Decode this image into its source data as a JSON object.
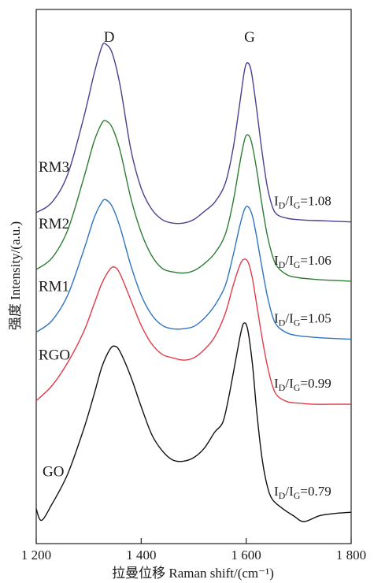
{
  "chart_data": {
    "type": "line",
    "title": "",
    "xlabel": "拉曼位移 Raman shift/(cm⁻¹)",
    "ylabel": "强度 Intensity/(a.u.)",
    "xlim": [
      1200,
      1800
    ],
    "x_ticks": [
      1200,
      1400,
      1600,
      1800
    ],
    "x_tick_labels": [
      "1 200",
      "1 400",
      "1 600",
      "1 800"
    ],
    "y_ticks": false,
    "grid": false,
    "legend": "none",
    "peak_labels": [
      {
        "text": "D",
        "x": 1330
      },
      {
        "text": "G",
        "x": 1605
      }
    ],
    "series": [
      {
        "name": "RM3",
        "color": "#4b3f8f",
        "ratio_text": "I_D/I_G=1.08",
        "ratio_sub_1": "D",
        "ratio_sub_2": "G",
        "ratio_value": "=1.08",
        "points": [
          [
            1200,
            8.75
          ],
          [
            1230,
            9.2
          ],
          [
            1260,
            10.4
          ],
          [
            1290,
            12.8
          ],
          [
            1310,
            14.7
          ],
          [
            1325,
            15.9
          ],
          [
            1333,
            16.0
          ],
          [
            1345,
            15.6
          ],
          [
            1360,
            14.2
          ],
          [
            1380,
            11.5
          ],
          [
            1400,
            9.8
          ],
          [
            1420,
            8.9
          ],
          [
            1440,
            8.45
          ],
          [
            1460,
            8.3
          ],
          [
            1480,
            8.3
          ],
          [
            1500,
            8.45
          ],
          [
            1520,
            8.8
          ],
          [
            1540,
            9.2
          ],
          [
            1560,
            10.0
          ],
          [
            1575,
            11.5
          ],
          [
            1588,
            13.5
          ],
          [
            1597,
            14.9
          ],
          [
            1603,
            15.2
          ],
          [
            1610,
            14.8
          ],
          [
            1620,
            13.2
          ],
          [
            1630,
            11.4
          ],
          [
            1640,
            9.9
          ],
          [
            1650,
            9.0
          ],
          [
            1660,
            8.65
          ],
          [
            1680,
            8.5
          ],
          [
            1700,
            8.45
          ],
          [
            1720,
            8.42
          ],
          [
            1750,
            8.4
          ],
          [
            1800,
            8.35
          ]
        ]
      },
      {
        "name": "RM2",
        "color": "#2e7d32",
        "ratio_text": "I_D/I_G=1.06",
        "ratio_sub_1": "D",
        "ratio_sub_2": "G",
        "ratio_value": "=1.06",
        "points": [
          [
            1200,
            6.3
          ],
          [
            1230,
            6.8
          ],
          [
            1260,
            8.0
          ],
          [
            1290,
            10.2
          ],
          [
            1310,
            11.8
          ],
          [
            1325,
            12.6
          ],
          [
            1333,
            12.7
          ],
          [
            1345,
            12.4
          ],
          [
            1360,
            11.4
          ],
          [
            1380,
            9.4
          ],
          [
            1400,
            7.9
          ],
          [
            1420,
            6.9
          ],
          [
            1440,
            6.35
          ],
          [
            1460,
            6.2
          ],
          [
            1480,
            6.15
          ],
          [
            1500,
            6.25
          ],
          [
            1520,
            6.55
          ],
          [
            1540,
            7.0
          ],
          [
            1560,
            7.8
          ],
          [
            1575,
            9.2
          ],
          [
            1588,
            10.9
          ],
          [
            1597,
            11.9
          ],
          [
            1603,
            12.1
          ],
          [
            1610,
            11.8
          ],
          [
            1620,
            10.6
          ],
          [
            1630,
            9.1
          ],
          [
            1640,
            7.8
          ],
          [
            1650,
            6.9
          ],
          [
            1660,
            6.4
          ],
          [
            1680,
            6.05
          ],
          [
            1700,
            5.95
          ],
          [
            1720,
            5.9
          ],
          [
            1750,
            5.85
          ],
          [
            1800,
            5.8
          ]
        ]
      },
      {
        "name": "RM1",
        "color": "#2f74c0",
        "ratio_text": "I_D/I_G=1.05",
        "ratio_sub_1": "D",
        "ratio_sub_2": "G",
        "ratio_value": "=1.05",
        "points": [
          [
            1200,
            3.6
          ],
          [
            1230,
            4.1
          ],
          [
            1260,
            5.2
          ],
          [
            1290,
            7.1
          ],
          [
            1310,
            8.5
          ],
          [
            1325,
            9.2
          ],
          [
            1333,
            9.3
          ],
          [
            1345,
            9.0
          ],
          [
            1360,
            8.1
          ],
          [
            1380,
            6.5
          ],
          [
            1400,
            5.2
          ],
          [
            1420,
            4.35
          ],
          [
            1440,
            3.9
          ],
          [
            1460,
            3.75
          ],
          [
            1480,
            3.75
          ],
          [
            1500,
            3.85
          ],
          [
            1520,
            4.2
          ],
          [
            1540,
            4.75
          ],
          [
            1560,
            5.6
          ],
          [
            1575,
            6.9
          ],
          [
            1588,
            8.2
          ],
          [
            1597,
            8.9
          ],
          [
            1604,
            9.0
          ],
          [
            1612,
            8.6
          ],
          [
            1620,
            7.7
          ],
          [
            1630,
            6.4
          ],
          [
            1640,
            5.2
          ],
          [
            1650,
            4.3
          ],
          [
            1660,
            3.85
          ],
          [
            1680,
            3.55
          ],
          [
            1700,
            3.45
          ],
          [
            1720,
            3.4
          ],
          [
            1750,
            3.35
          ],
          [
            1800,
            3.3
          ]
        ]
      },
      {
        "name": "RGO",
        "color": "#e03c4a",
        "ratio_text": "I_D/I_G=0.99",
        "ratio_sub_1": "D",
        "ratio_sub_2": "G",
        "ratio_value": "=0.99",
        "points": [
          [
            1200,
            0.65
          ],
          [
            1230,
            1.3
          ],
          [
            1260,
            2.3
          ],
          [
            1290,
            3.6
          ],
          [
            1310,
            4.8
          ],
          [
            1325,
            5.7
          ],
          [
            1340,
            6.3
          ],
          [
            1350,
            6.4
          ],
          [
            1360,
            6.1
          ],
          [
            1380,
            5.0
          ],
          [
            1400,
            3.9
          ],
          [
            1420,
            3.1
          ],
          [
            1440,
            2.65
          ],
          [
            1460,
            2.5
          ],
          [
            1480,
            2.4
          ],
          [
            1500,
            2.5
          ],
          [
            1520,
            2.85
          ],
          [
            1540,
            3.4
          ],
          [
            1560,
            4.4
          ],
          [
            1575,
            5.6
          ],
          [
            1588,
            6.5
          ],
          [
            1596,
            6.75
          ],
          [
            1604,
            6.6
          ],
          [
            1612,
            5.9
          ],
          [
            1620,
            4.8
          ],
          [
            1630,
            3.4
          ],
          [
            1640,
            2.2
          ],
          [
            1650,
            1.3
          ],
          [
            1660,
            0.85
          ],
          [
            1680,
            0.6
          ],
          [
            1700,
            0.55
          ],
          [
            1730,
            0.5
          ],
          [
            1760,
            0.5
          ],
          [
            1800,
            0.5
          ]
        ]
      },
      {
        "name": "GO",
        "color": "#111111",
        "ratio_text": "I_D/I_G=0.79",
        "ratio_sub_1": "D",
        "ratio_sub_2": "G",
        "ratio_value": "=0.79",
        "points": [
          [
            1200,
            -4.0
          ],
          [
            1210,
            -4.5
          ],
          [
            1230,
            -3.8
          ],
          [
            1260,
            -2.5
          ],
          [
            1290,
            -0.6
          ],
          [
            1310,
            0.9
          ],
          [
            1325,
            2.1
          ],
          [
            1340,
            2.85
          ],
          [
            1350,
            3.0
          ],
          [
            1360,
            2.75
          ],
          [
            1380,
            1.7
          ],
          [
            1400,
            0.4
          ],
          [
            1420,
            -0.8
          ],
          [
            1440,
            -1.5
          ],
          [
            1460,
            -1.9
          ],
          [
            1480,
            -1.95
          ],
          [
            1500,
            -1.8
          ],
          [
            1520,
            -1.4
          ],
          [
            1540,
            -0.7
          ],
          [
            1555,
            -0.3
          ],
          [
            1565,
            0.6
          ],
          [
            1580,
            2.4
          ],
          [
            1590,
            3.6
          ],
          [
            1596,
            4.0
          ],
          [
            1603,
            3.7
          ],
          [
            1612,
            2.2
          ],
          [
            1620,
            0.2
          ],
          [
            1630,
            -1.8
          ],
          [
            1640,
            -3.0
          ],
          [
            1650,
            -3.6
          ],
          [
            1670,
            -4.0
          ],
          [
            1690,
            -4.3
          ],
          [
            1710,
            -4.55
          ],
          [
            1740,
            -4.3
          ],
          [
            1770,
            -4.2
          ],
          [
            1800,
            -4.15
          ]
        ]
      }
    ]
  }
}
